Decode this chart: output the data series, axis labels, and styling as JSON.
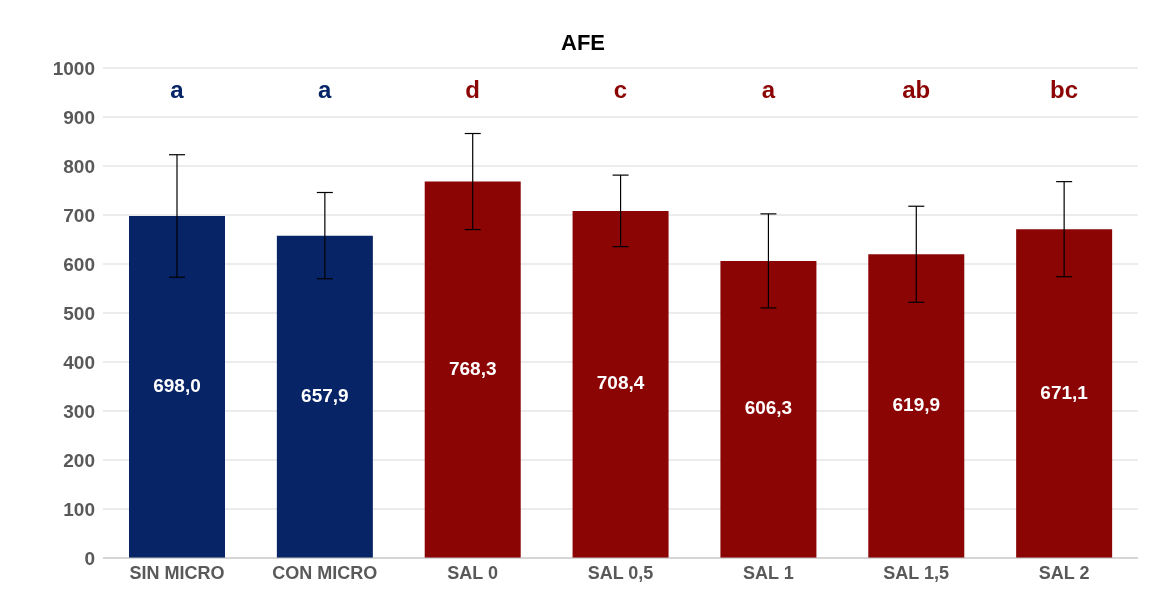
{
  "chart_data": {
    "type": "bar",
    "title": "AFE",
    "categories": [
      "SIN MICRO",
      "CON MICRO",
      "SAL 0",
      "SAL 0,5",
      "SAL 1",
      "SAL 1,5",
      "SAL 2"
    ],
    "values": [
      698.0,
      657.9,
      768.3,
      708.4,
      606.3,
      619.9,
      671.1
    ],
    "value_labels": [
      "698,0",
      "657,9",
      "768,3",
      "708,4",
      "606,3",
      "619,9",
      "671,1"
    ],
    "colors": [
      "#062466",
      "#062466",
      "#8b0505",
      "#8b0505",
      "#8b0505",
      "#8b0505",
      "#8b0505"
    ],
    "errors": [
      125,
      88,
      98,
      73,
      96,
      98,
      97
    ],
    "ylim": [
      0,
      1000
    ],
    "yticks": [
      0,
      100,
      200,
      300,
      400,
      500,
      600,
      700,
      800,
      900,
      1000
    ],
    "grid": "y",
    "annotations": [
      "a",
      "a",
      "d",
      "c",
      "a",
      "ab",
      "bc"
    ]
  }
}
